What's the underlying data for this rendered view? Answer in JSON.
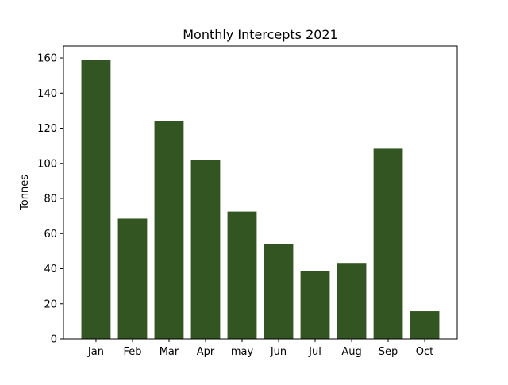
{
  "chart_data": {
    "type": "bar",
    "title": "Monthly Intercepts 2021",
    "xlabel": "",
    "ylabel": "Tonnes",
    "categories": [
      "Jan",
      "Feb",
      "Mar",
      "Apr",
      "may",
      "Jun",
      "Jul",
      "Aug",
      "Sep",
      "Oct"
    ],
    "values": [
      159,
      68.5,
      124.2,
      102,
      72.5,
      54,
      38.7,
      43.3,
      108.3,
      15.8
    ],
    "ylim": [
      0,
      166.8
    ],
    "yticks": [
      0,
      20,
      40,
      60,
      80,
      100,
      120,
      140,
      160
    ],
    "bar_color": "#335522",
    "grid": false,
    "legend": "none"
  }
}
